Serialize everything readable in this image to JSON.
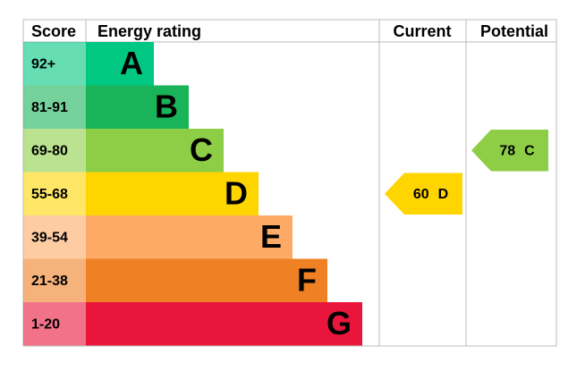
{
  "header": {
    "score": "Score",
    "rating": "Energy rating",
    "current": "Current",
    "potential": "Potential"
  },
  "bands": [
    {
      "score": "92+",
      "letter": "A",
      "color": "#00c781"
    },
    {
      "score": "81-91",
      "letter": "B",
      "color": "#19b459"
    },
    {
      "score": "69-80",
      "letter": "C",
      "color": "#8dce46"
    },
    {
      "score": "55-68",
      "letter": "D",
      "color": "#ffd500"
    },
    {
      "score": "39-54",
      "letter": "E",
      "color": "#fcaa65"
    },
    {
      "score": "21-38",
      "letter": "F",
      "color": "#ef8023"
    },
    {
      "score": "1-20",
      "letter": "G",
      "color": "#e9153b"
    }
  ],
  "current": {
    "value": "60",
    "letter": "D"
  },
  "potential": {
    "value": "78",
    "letter": "C"
  }
}
